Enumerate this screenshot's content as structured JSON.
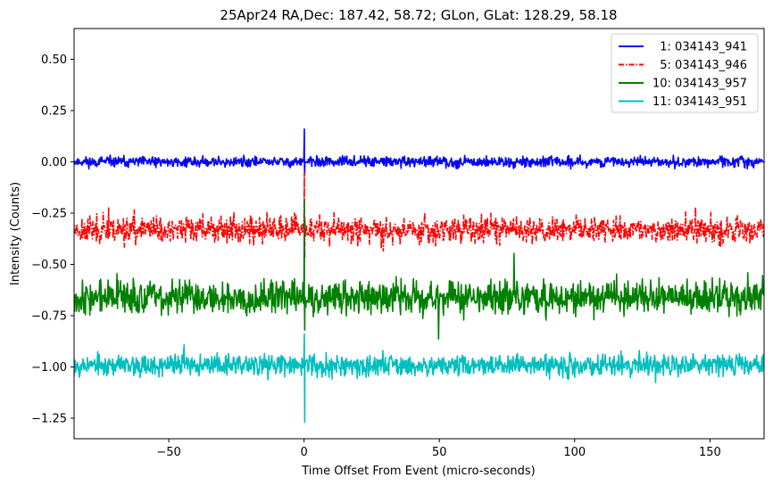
{
  "chart_data": {
    "type": "line",
    "title": "25Apr24 RA,Dec:  187.42,  58.72; GLon, GLat:  128.29,  58.18",
    "xlabel": "Time Offset From Event (micro-seconds)",
    "ylabel": "Intensity (Counts)",
    "xlim": [
      -85,
      170
    ],
    "ylim": [
      -1.35,
      0.65
    ],
    "xticks": [
      -50,
      0,
      50,
      100,
      150
    ],
    "xtick_labels": [
      "−50",
      "0",
      "50",
      "100",
      "150"
    ],
    "yticks": [
      0.5,
      0.25,
      0.0,
      -0.25,
      -0.5,
      -0.75,
      -1.0,
      -1.25
    ],
    "ytick_labels": [
      "0.50",
      "0.25",
      "0.00",
      "−0.25",
      "−0.50",
      "−0.75",
      "−1.00",
      "−1.25"
    ],
    "grid": false,
    "legend_position": "top-right",
    "event_time": 0,
    "series": [
      {
        "name": "  1: 034143_941",
        "color": "#0000ff",
        "style": "solid",
        "offset": 0.0,
        "noise_amplitude": 0.022,
        "spike_max": 0.16,
        "spike_min": -0.06,
        "seed": 11
      },
      {
        "name": "  5: 034143_946",
        "color": "#ff0000",
        "style": "dashdot",
        "offset": -0.33,
        "noise_amplitude": 0.055,
        "spike_max": -0.05,
        "spike_min": -0.47,
        "seed": 23
      },
      {
        "name": "10: 034143_957",
        "color": "#008000",
        "style": "solid",
        "offset": -0.66,
        "noise_amplitude": 0.07,
        "spike_max": -0.19,
        "spike_min": -0.82,
        "seed": 37
      },
      {
        "name": "11: 034143_951",
        "color": "#00bfbf",
        "style": "solid",
        "offset": -0.99,
        "noise_amplitude": 0.045,
        "spike_max": -0.84,
        "spike_min": -1.27,
        "seed": 53
      }
    ]
  }
}
